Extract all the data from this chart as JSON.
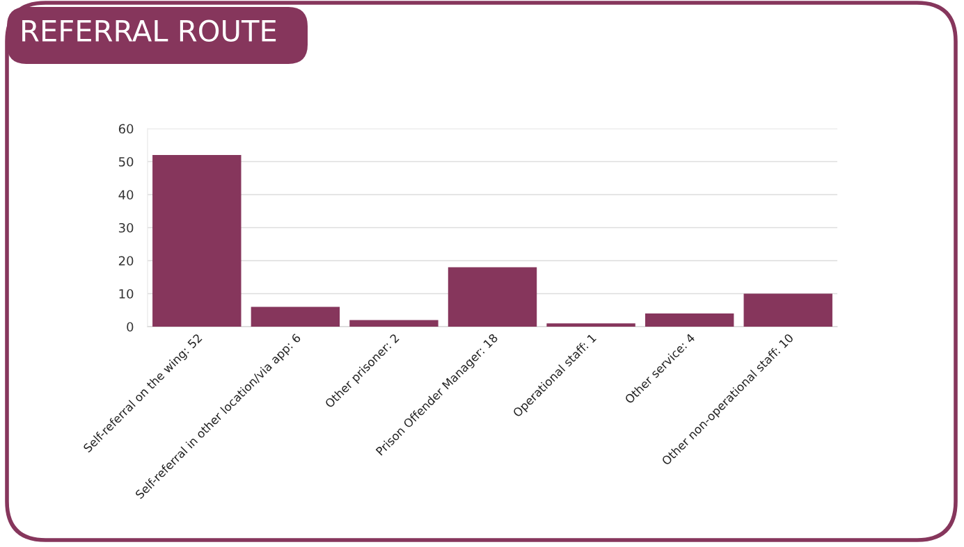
{
  "chart_data": {
    "type": "bar",
    "title": "REFERRAL ROUTE",
    "categories": [
      "Self-referral on the wing: 52",
      "Self-referral in other location/via app: 6",
      "Other prisoner: 2",
      "Prison Offender Manager: 18",
      "Operational staff: 1",
      "Other service: 4",
      "Other non-operational staff: 10"
    ],
    "values": [
      52,
      6,
      2,
      18,
      1,
      4,
      10
    ],
    "color": "#86365c",
    "ylim": [
      0,
      60
    ],
    "yticks": [
      0,
      10,
      20,
      30,
      40,
      50,
      60
    ],
    "grid": "y"
  }
}
